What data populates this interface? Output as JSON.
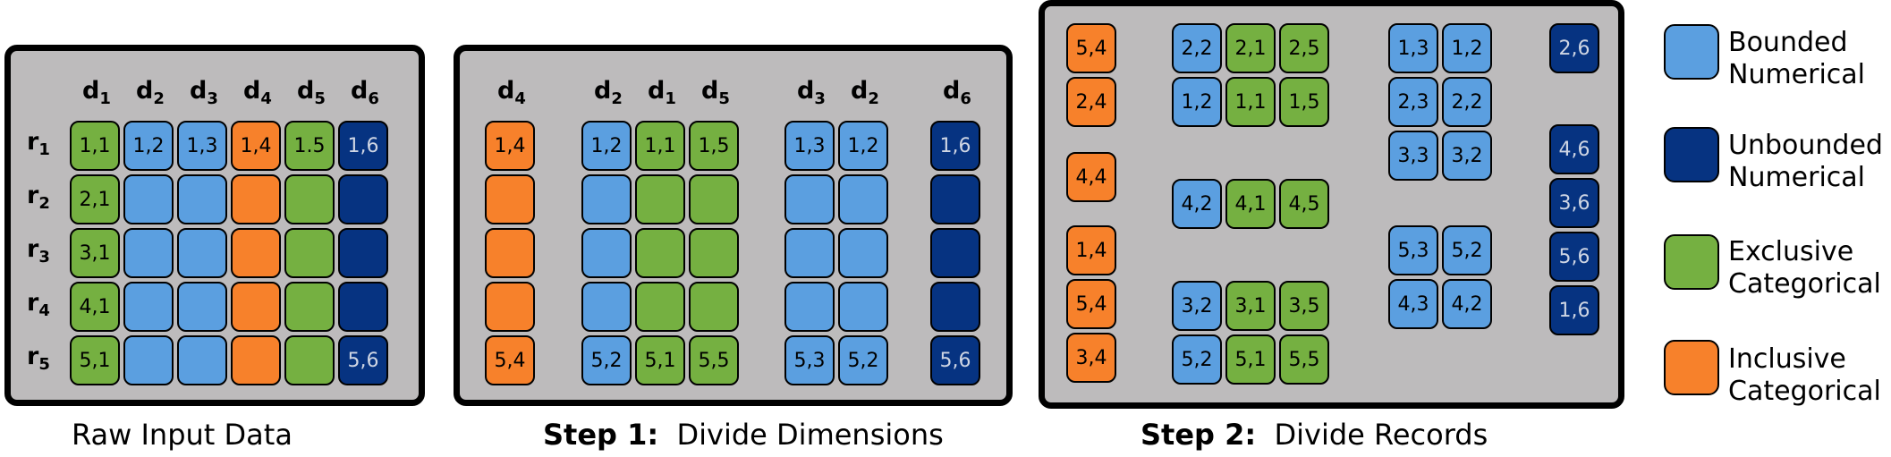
{
  "colors": {
    "bounded": "#5b9fe0",
    "unbounded": "#063381",
    "exclusive": "#75b041",
    "inclusive": "#f7812b",
    "panel": "#bdbbbc"
  },
  "captions": {
    "raw": "Raw Input Data",
    "step1_bold": "Step 1:",
    "step1_text": "Divide Dimensions",
    "step2_bold": "Step 2:",
    "step2_text": "Divide Records"
  },
  "legend": [
    {
      "type": "bounded",
      "line1": "Bounded",
      "line2": "Numerical"
    },
    {
      "type": "unbounded",
      "line1": "Unbounded",
      "line2": "Numerical"
    },
    {
      "type": "exclusive",
      "line1": "Exclusive",
      "line2": "Categorical"
    },
    {
      "type": "inclusive",
      "line1": "Inclusive",
      "line2": "Categorical"
    }
  ],
  "panel1": {
    "column_headers": [
      {
        "base": "d",
        "sub": "1"
      },
      {
        "base": "d",
        "sub": "2"
      },
      {
        "base": "d",
        "sub": "3"
      },
      {
        "base": "d",
        "sub": "4"
      },
      {
        "base": "d",
        "sub": "5"
      },
      {
        "base": "d",
        "sub": "6"
      }
    ],
    "row_headers": [
      {
        "base": "r",
        "sub": "1"
      },
      {
        "base": "r",
        "sub": "2"
      },
      {
        "base": "r",
        "sub": "3"
      },
      {
        "base": "r",
        "sub": "4"
      },
      {
        "base": "r",
        "sub": "5"
      }
    ],
    "column_types": [
      "exclusive",
      "bounded",
      "bounded",
      "inclusive",
      "exclusive",
      "unbounded"
    ],
    "cells": [
      [
        "1,1",
        "1,2",
        "1,3",
        "1,4",
        "1.5",
        "1,6"
      ],
      [
        "2,1",
        "",
        "",
        "",
        "",
        ""
      ],
      [
        "3,1",
        "",
        "",
        "",
        "",
        ""
      ],
      [
        "4,1",
        "",
        "",
        "",
        "",
        ""
      ],
      [
        "5,1",
        "",
        "",
        "",
        "",
        "5,6"
      ]
    ]
  },
  "panel2": {
    "groups": [
      {
        "headers": [
          {
            "base": "d",
            "sub": "4"
          }
        ],
        "types": [
          "inclusive"
        ],
        "rows": [
          [
            "1,4"
          ],
          [
            ""
          ],
          [
            ""
          ],
          [
            ""
          ],
          [
            "5,4"
          ]
        ]
      },
      {
        "headers": [
          {
            "base": "d",
            "sub": "2"
          },
          {
            "base": "d",
            "sub": "1"
          },
          {
            "base": "d",
            "sub": "5"
          }
        ],
        "types": [
          "bounded",
          "exclusive",
          "exclusive"
        ],
        "rows": [
          [
            "1,2",
            "1,1",
            "1,5"
          ],
          [
            "",
            "",
            ""
          ],
          [
            "",
            "",
            ""
          ],
          [
            "",
            "",
            ""
          ],
          [
            "5,2",
            "5,1",
            "5,5"
          ]
        ]
      },
      {
        "headers": [
          {
            "base": "d",
            "sub": "3"
          },
          {
            "base": "d",
            "sub": "2"
          }
        ],
        "types": [
          "bounded",
          "bounded"
        ],
        "rows": [
          [
            "1,3",
            "1,2"
          ],
          [
            "",
            ""
          ],
          [
            "",
            ""
          ],
          [
            "",
            ""
          ],
          [
            "5,3",
            "5,2"
          ]
        ]
      },
      {
        "headers": [
          {
            "base": "d",
            "sub": "6"
          }
        ],
        "types": [
          "unbounded"
        ],
        "rows": [
          [
            "1,6"
          ],
          [
            ""
          ],
          [
            ""
          ],
          [
            ""
          ],
          [
            "5,6"
          ]
        ]
      }
    ]
  },
  "panel3": {
    "blocks": [
      {
        "types": [
          "inclusive"
        ],
        "rows": [
          [
            "5,4"
          ],
          [
            "2,4"
          ]
        ]
      },
      {
        "types": [
          "inclusive"
        ],
        "rows": [
          [
            "4,4"
          ]
        ]
      },
      {
        "types": [
          "inclusive"
        ],
        "rows": [
          [
            "1,4"
          ],
          [
            "5,4"
          ],
          [
            "3,4"
          ]
        ]
      },
      {
        "types": [
          "bounded",
          "exclusive",
          "exclusive"
        ],
        "rows": [
          [
            "2,2",
            "2,1",
            "2,5"
          ],
          [
            "1,2",
            "1,1",
            "1,5"
          ]
        ]
      },
      {
        "types": [
          "bounded",
          "exclusive",
          "exclusive"
        ],
        "rows": [
          [
            "4,2",
            "4,1",
            "4,5"
          ]
        ]
      },
      {
        "types": [
          "bounded",
          "exclusive",
          "exclusive"
        ],
        "rows": [
          [
            "3,2",
            "3,1",
            "3,5"
          ],
          [
            "5,2",
            "5,1",
            "5,5"
          ]
        ]
      },
      {
        "types": [
          "bounded",
          "bounded"
        ],
        "rows": [
          [
            "1,3",
            "1,2"
          ],
          [
            "2,3",
            "2,2"
          ],
          [
            "3,3",
            "3,2"
          ]
        ]
      },
      {
        "types": [
          "bounded",
          "bounded"
        ],
        "rows": [
          [
            "5,3",
            "5,2"
          ],
          [
            "4,3",
            "4,2"
          ]
        ]
      },
      {
        "types": [
          "unbounded"
        ],
        "rows": [
          [
            "2,6"
          ]
        ]
      },
      {
        "types": [
          "unbounded"
        ],
        "rows": [
          [
            "4,6"
          ],
          [
            "3,6"
          ],
          [
            "5,6"
          ],
          [
            "1,6"
          ]
        ]
      }
    ]
  }
}
